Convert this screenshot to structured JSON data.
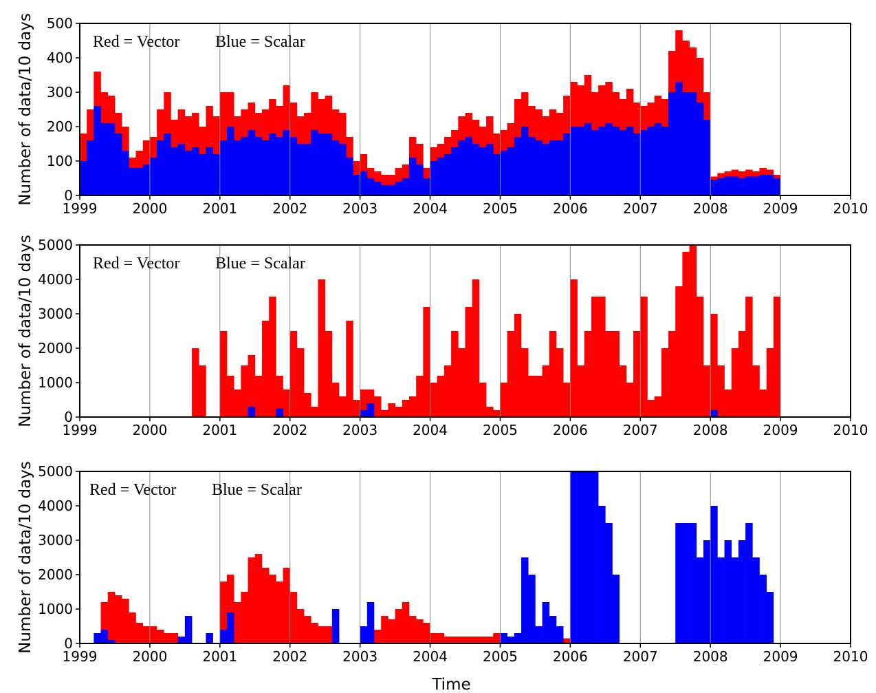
{
  "chart_data": [
    {
      "type": "histogram",
      "ylabel": "Number of data/10 days",
      "bins": [
        1999.0,
        1999.1,
        1999.2,
        1999.3,
        1999.4,
        1999.5,
        1999.6,
        1999.7,
        1999.8,
        1999.9,
        2000.0,
        2000.1,
        2000.2,
        2000.3,
        2000.4,
        2000.5,
        2000.6,
        2000.7,
        2000.8,
        2000.9,
        2001.0,
        2001.1,
        2001.2,
        2001.3,
        2001.4,
        2001.5,
        2001.6,
        2001.7,
        2001.8,
        2001.9,
        2002.0,
        2002.1,
        2002.2,
        2002.3,
        2002.4,
        2002.5,
        2002.6,
        2002.7,
        2002.8,
        2002.9,
        2003.0,
        2003.1,
        2003.2,
        2003.3,
        2003.4,
        2003.5,
        2003.6,
        2003.7,
        2003.8,
        2003.9,
        2004.0,
        2004.1,
        2004.2,
        2004.3,
        2004.4,
        2004.5,
        2004.6,
        2004.7,
        2004.8,
        2004.9,
        2005.0,
        2005.1,
        2005.2,
        2005.3,
        2005.4,
        2005.5,
        2005.6,
        2005.7,
        2005.8,
        2005.9,
        2006.0,
        2006.1,
        2006.2,
        2006.3,
        2006.4,
        2006.5,
        2006.6,
        2006.7,
        2006.8,
        2006.9,
        2007.0,
        2007.1,
        2007.2,
        2007.3,
        2007.4,
        2007.5,
        2007.6,
        2007.7,
        2007.8,
        2007.9,
        2008.0,
        2008.1,
        2008.2,
        2008.3,
        2008.4,
        2008.5,
        2008.6,
        2008.7,
        2008.8,
        2008.9,
        2009.0
      ],
      "series": [
        {
          "name": "Red = Vector",
          "color": "#ff0000",
          "values": [
            180,
            250,
            360,
            300,
            290,
            240,
            200,
            110,
            130,
            160,
            170,
            250,
            300,
            220,
            250,
            230,
            240,
            200,
            260,
            230,
            300,
            300,
            230,
            250,
            270,
            240,
            250,
            280,
            260,
            320,
            270,
            230,
            240,
            300,
            280,
            290,
            250,
            240,
            170,
            100,
            120,
            80,
            70,
            60,
            60,
            80,
            90,
            170,
            150,
            80,
            140,
            150,
            170,
            190,
            230,
            240,
            220,
            200,
            230,
            180,
            190,
            210,
            280,
            300,
            260,
            250,
            230,
            250,
            240,
            290,
            330,
            320,
            350,
            300,
            320,
            330,
            300,
            280,
            310,
            270,
            260,
            270,
            290,
            280,
            420,
            480,
            450,
            430,
            400,
            300,
            55,
            65,
            70,
            75,
            70,
            75,
            70,
            80,
            75,
            60
          ]
        },
        {
          "name": "Blue = Scalar",
          "color": "#0000ff",
          "values": [
            100,
            160,
            260,
            210,
            210,
            180,
            130,
            80,
            80,
            90,
            110,
            160,
            180,
            140,
            150,
            130,
            140,
            120,
            140,
            120,
            160,
            200,
            160,
            170,
            190,
            170,
            160,
            180,
            170,
            190,
            170,
            150,
            150,
            190,
            180,
            180,
            160,
            150,
            110,
            60,
            70,
            50,
            40,
            30,
            30,
            40,
            50,
            110,
            90,
            50,
            100,
            110,
            120,
            140,
            160,
            170,
            150,
            140,
            150,
            120,
            130,
            140,
            170,
            200,
            170,
            160,
            150,
            160,
            160,
            180,
            200,
            200,
            210,
            190,
            200,
            210,
            200,
            190,
            200,
            180,
            190,
            200,
            210,
            200,
            300,
            330,
            300,
            300,
            270,
            220,
            45,
            50,
            55,
            55,
            50,
            55,
            55,
            60,
            60,
            50
          ]
        }
      ],
      "xlim": [
        1999,
        2010
      ],
      "xticks": [
        1999,
        2000,
        2001,
        2002,
        2003,
        2004,
        2005,
        2006,
        2007,
        2008,
        2009,
        2010
      ],
      "ylim": [
        0,
        500
      ],
      "yticks": [
        0,
        100,
        200,
        300,
        400,
        500
      ],
      "grid": true
    },
    {
      "type": "histogram",
      "ylabel": "Number of data/10 days",
      "bins": [
        1999.0,
        1999.1,
        1999.2,
        1999.3,
        1999.4,
        1999.5,
        1999.6,
        1999.7,
        1999.8,
        1999.9,
        2000.0,
        2000.1,
        2000.2,
        2000.3,
        2000.4,
        2000.5,
        2000.6,
        2000.7,
        2000.8,
        2000.9,
        2001.0,
        2001.1,
        2001.2,
        2001.3,
        2001.4,
        2001.5,
        2001.6,
        2001.7,
        2001.8,
        2001.9,
        2002.0,
        2002.1,
        2002.2,
        2002.3,
        2002.4,
        2002.5,
        2002.6,
        2002.7,
        2002.8,
        2002.9,
        2003.0,
        2003.1,
        2003.2,
        2003.3,
        2003.4,
        2003.5,
        2003.6,
        2003.7,
        2003.8,
        2003.9,
        2004.0,
        2004.1,
        2004.2,
        2004.3,
        2004.4,
        2004.5,
        2004.6,
        2004.7,
        2004.8,
        2004.9,
        2005.0,
        2005.1,
        2005.2,
        2005.3,
        2005.4,
        2005.5,
        2005.6,
        2005.7,
        2005.8,
        2005.9,
        2006.0,
        2006.1,
        2006.2,
        2006.3,
        2006.4,
        2006.5,
        2006.6,
        2006.7,
        2006.8,
        2006.9,
        2007.0,
        2007.1,
        2007.2,
        2007.3,
        2007.4,
        2007.5,
        2007.6,
        2007.7,
        2007.8,
        2007.9,
        2008.0,
        2008.1,
        2008.2,
        2008.3,
        2008.4,
        2008.5,
        2008.6,
        2008.7,
        2008.8,
        2008.9,
        2009.0
      ],
      "series": [
        {
          "name": "Red = Vector",
          "color": "#ff0000",
          "values": [
            0,
            0,
            0,
            0,
            0,
            0,
            0,
            0,
            0,
            0,
            0,
            0,
            0,
            0,
            0,
            0,
            2000,
            1500,
            0,
            0,
            2500,
            1200,
            800,
            1500,
            1800,
            1200,
            2800,
            3500,
            1200,
            800,
            2500,
            2000,
            700,
            300,
            4000,
            2500,
            1000,
            600,
            2800,
            500,
            800,
            800,
            600,
            200,
            400,
            300,
            500,
            600,
            1200,
            3200,
            1000,
            1200,
            1500,
            2500,
            2000,
            3200,
            4000,
            1000,
            300,
            200,
            1000,
            2500,
            3000,
            2000,
            1200,
            1200,
            1500,
            2500,
            2000,
            1000,
            4000,
            1500,
            2500,
            3500,
            3500,
            2500,
            2500,
            1500,
            1000,
            2500,
            3500,
            500,
            600,
            2000,
            2500,
            3800,
            4800,
            5000,
            3500,
            1500,
            3000,
            1500,
            800,
            2000,
            2500,
            3500,
            1500,
            800,
            2000,
            3500
          ]
        },
        {
          "name": "Blue = Scalar",
          "color": "#0000ff",
          "values": [
            0,
            0,
            0,
            0,
            0,
            0,
            0,
            0,
            0,
            0,
            0,
            0,
            0,
            0,
            0,
            0,
            0,
            0,
            0,
            0,
            0,
            0,
            0,
            0,
            300,
            0,
            0,
            0,
            250,
            0,
            0,
            0,
            0,
            0,
            0,
            0,
            0,
            0,
            0,
            0,
            200,
            400,
            0,
            0,
            0,
            0,
            0,
            0,
            0,
            0,
            0,
            0,
            0,
            0,
            0,
            0,
            0,
            0,
            0,
            0,
            0,
            0,
            0,
            0,
            0,
            0,
            0,
            0,
            0,
            0,
            0,
            0,
            0,
            0,
            0,
            0,
            0,
            0,
            0,
            0,
            0,
            0,
            0,
            0,
            0,
            0,
            0,
            0,
            0,
            0,
            200,
            0,
            0,
            0,
            0,
            0,
            0,
            0,
            0,
            0
          ]
        }
      ],
      "xlim": [
        1999,
        2010
      ],
      "xticks": [
        1999,
        2000,
        2001,
        2002,
        2003,
        2004,
        2005,
        2006,
        2007,
        2008,
        2009,
        2010
      ],
      "ylim": [
        0,
        5000
      ],
      "yticks": [
        0,
        1000,
        2000,
        3000,
        4000,
        5000
      ],
      "grid": true
    },
    {
      "type": "histogram",
      "ylabel": "Number of data/10 days",
      "xlabel": "Time",
      "bins": [
        1999.0,
        1999.1,
        1999.2,
        1999.3,
        1999.4,
        1999.5,
        1999.6,
        1999.7,
        1999.8,
        1999.9,
        2000.0,
        2000.1,
        2000.2,
        2000.3,
        2000.4,
        2000.5,
        2000.6,
        2000.7,
        2000.8,
        2000.9,
        2001.0,
        2001.1,
        2001.2,
        2001.3,
        2001.4,
        2001.5,
        2001.6,
        2001.7,
        2001.8,
        2001.9,
        2002.0,
        2002.1,
        2002.2,
        2002.3,
        2002.4,
        2002.5,
        2002.6,
        2002.7,
        2002.8,
        2002.9,
        2003.0,
        2003.1,
        2003.2,
        2003.3,
        2003.4,
        2003.5,
        2003.6,
        2003.7,
        2003.8,
        2003.9,
        2004.0,
        2004.1,
        2004.2,
        2004.3,
        2004.4,
        2004.5,
        2004.6,
        2004.7,
        2004.8,
        2004.9,
        2005.0,
        2005.1,
        2005.2,
        2005.3,
        2005.4,
        2005.5,
        2005.6,
        2005.7,
        2005.8,
        2005.9,
        2006.0,
        2006.1,
        2006.2,
        2006.3,
        2006.4,
        2006.5,
        2006.6,
        2006.7,
        2006.8,
        2006.9,
        2007.0,
        2007.1,
        2007.2,
        2007.3,
        2007.4,
        2007.5,
        2007.6,
        2007.7,
        2007.8,
        2007.9,
        2008.0,
        2008.1,
        2008.2,
        2008.3,
        2008.4,
        2008.5,
        2008.6,
        2008.7,
        2008.8,
        2008.9,
        2009.0
      ],
      "series": [
        {
          "name": "Red = Vector",
          "color": "#ff0000",
          "values": [
            0,
            0,
            0,
            1200,
            1500,
            1400,
            1300,
            900,
            600,
            500,
            500,
            400,
            300,
            300,
            200,
            0,
            0,
            0,
            0,
            0,
            1800,
            2000,
            1200,
            1500,
            2500,
            2600,
            2200,
            2000,
            1800,
            2200,
            1500,
            1000,
            800,
            600,
            500,
            500,
            400,
            0,
            0,
            0,
            0,
            0,
            400,
            800,
            700,
            1000,
            1200,
            800,
            700,
            600,
            300,
            300,
            200,
            200,
            200,
            200,
            200,
            200,
            200,
            300,
            300,
            200,
            200,
            300,
            300,
            250,
            200,
            250,
            200,
            150,
            0,
            0,
            0,
            0,
            0,
            0,
            0,
            0,
            0,
            0,
            0,
            0,
            0,
            0,
            0,
            0,
            0,
            0,
            0,
            0,
            0,
            0,
            0,
            0,
            0,
            0,
            0,
            0,
            0,
            0
          ]
        },
        {
          "name": "Blue = Scalar",
          "color": "#0000ff",
          "values": [
            0,
            0,
            300,
            400,
            100,
            0,
            0,
            0,
            0,
            0,
            0,
            0,
            0,
            0,
            200,
            800,
            0,
            0,
            300,
            0,
            400,
            900,
            0,
            0,
            0,
            0,
            0,
            0,
            0,
            0,
            0,
            0,
            0,
            0,
            0,
            0,
            1000,
            0,
            0,
            0,
            500,
            1200,
            0,
            0,
            0,
            0,
            0,
            0,
            0,
            0,
            0,
            0,
            0,
            0,
            0,
            0,
            0,
            0,
            0,
            0,
            300,
            200,
            300,
            2500,
            2000,
            500,
            1200,
            800,
            500,
            0,
            5000,
            5000,
            5000,
            5000,
            4000,
            3500,
            2000,
            0,
            0,
            0,
            0,
            0,
            0,
            0,
            0,
            3500,
            3500,
            3500,
            2500,
            3000,
            4000,
            2500,
            3000,
            2500,
            3000,
            3500,
            2500,
            2000,
            1500,
            0
          ]
        }
      ],
      "xlim": [
        1999,
        2010
      ],
      "xticks": [
        1999,
        2000,
        2001,
        2002,
        2003,
        2004,
        2005,
        2006,
        2007,
        2008,
        2009,
        2010
      ],
      "ylim": [
        0,
        5000
      ],
      "yticks": [
        0,
        1000,
        2000,
        3000,
        4000,
        5000
      ],
      "grid": true
    }
  ]
}
